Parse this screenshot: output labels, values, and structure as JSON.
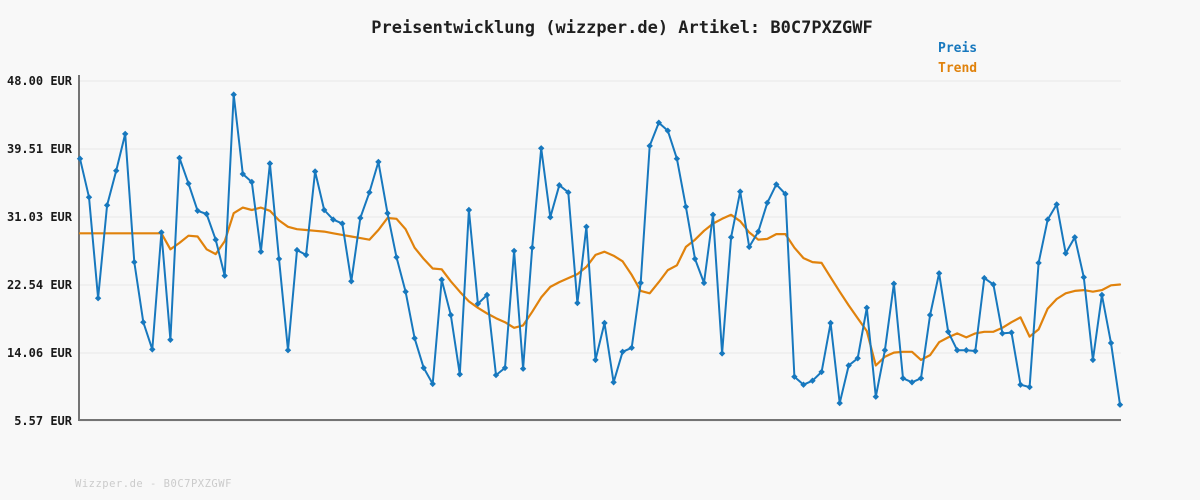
{
  "title": "Preisentwicklung (wizzper.de) Artikel: B0C7PXZGWF",
  "footer": "Wizzper.de - B0C7PXZGWF",
  "legend": {
    "items": [
      {
        "label": "Preis",
        "color": "#1778be"
      },
      {
        "label": "Trend",
        "color": "#e0820c"
      }
    ]
  },
  "colors": {
    "background": "#f8f8f8",
    "gridline": "#e8e8e8",
    "axis_spine": "#747474",
    "tick_text": "#1a1a1a",
    "price_line": "#1778be",
    "trend_line": "#e0820c"
  },
  "y_axis": {
    "unit": "EUR",
    "ticks": [
      {
        "label": "48.00 EUR",
        "value": 48.0
      },
      {
        "label": "39.51 EUR",
        "value": 39.51
      },
      {
        "label": "31.03 EUR",
        "value": 31.03
      },
      {
        "label": "22.54 EUR",
        "value": 22.54
      },
      {
        "label": "14.06 EUR",
        "value": 14.06
      },
      {
        "label": "5.57 EUR",
        "value": 5.57
      }
    ]
  },
  "chart_data": {
    "type": "line",
    "title": "Preisentwicklung (wizzper.de) Artikel: B0C7PXZGWF",
    "xlabel": "",
    "ylabel": "EUR",
    "ylim": [
      5.57,
      48.0
    ],
    "x_axis_labels": "none (index 0..115, evenly spaced)",
    "grid": "horizontal",
    "legend_position": "top-right",
    "series": [
      {
        "name": "Preis",
        "color": "#1778be",
        "marker": "diamond",
        "values": [
          38.3,
          33.5,
          20.9,
          32.5,
          36.8,
          41.4,
          25.4,
          17.9,
          14.5,
          29.1,
          15.7,
          38.4,
          35.2,
          31.8,
          31.4,
          28.2,
          23.7,
          46.3,
          36.4,
          35.4,
          26.7,
          37.7,
          25.8,
          14.4,
          26.9,
          26.3,
          36.7,
          31.9,
          30.7,
          30.2,
          23.0,
          30.9,
          34.1,
          37.9,
          31.5,
          26.0,
          21.7,
          15.9,
          12.2,
          10.2,
          23.2,
          18.8,
          11.4,
          31.9,
          20.2,
          21.3,
          11.3,
          12.2,
          26.8,
          12.1,
          27.2,
          39.6,
          31.0,
          35.0,
          34.1,
          20.3,
          29.8,
          13.2,
          17.8,
          10.4,
          14.2,
          14.7,
          22.8,
          39.9,
          42.8,
          41.8,
          38.3,
          32.3,
          25.8,
          22.8,
          31.3,
          14.0,
          28.5,
          34.2,
          27.3,
          29.2,
          32.8,
          35.1,
          33.9,
          11.1,
          10.1,
          10.6,
          11.7,
          17.8,
          7.8,
          12.5,
          13.4,
          19.7,
          8.6,
          14.4,
          22.7,
          10.9,
          10.4,
          10.9,
          18.8,
          24.0,
          16.7,
          14.4,
          14.4,
          14.3,
          23.4,
          22.6,
          16.5,
          16.6,
          10.1,
          9.8,
          25.3,
          30.7,
          32.6,
          26.5,
          28.5,
          23.5,
          13.2,
          21.3,
          15.3,
          7.6
        ]
      },
      {
        "name": "Trend",
        "color": "#e0820c",
        "marker": "none",
        "values": [
          29.0,
          29.0,
          29.0,
          29.0,
          29.0,
          29.0,
          29.0,
          29.0,
          29.0,
          29.0,
          27.0,
          27.8,
          28.7,
          28.6,
          27.0,
          26.4,
          28.0,
          31.5,
          32.2,
          31.9,
          32.2,
          31.8,
          30.6,
          29.8,
          29.5,
          29.4,
          29.3,
          29.2,
          29.0,
          28.8,
          28.6,
          28.4,
          28.2,
          29.4,
          30.9,
          30.8,
          29.5,
          27.2,
          25.8,
          24.6,
          24.5,
          23.0,
          21.7,
          20.5,
          19.7,
          19.0,
          18.4,
          17.9,
          17.2,
          17.5,
          19.2,
          21.0,
          22.3,
          22.9,
          23.4,
          23.9,
          24.8,
          26.3,
          26.7,
          26.2,
          25.5,
          23.8,
          21.8,
          21.5,
          22.9,
          24.4,
          25.0,
          27.3,
          28.2,
          29.3,
          30.2,
          30.8,
          31.3,
          30.5,
          29.1,
          28.2,
          28.3,
          28.9,
          28.9,
          27.2,
          25.9,
          25.4,
          25.3,
          23.5,
          21.7,
          20.0,
          18.4,
          16.8,
          12.5,
          13.6,
          14.1,
          14.2,
          14.2,
          13.2,
          13.8,
          15.4,
          16.0,
          16.5,
          16.0,
          16.5,
          16.7,
          16.7,
          17.2,
          17.9,
          18.5,
          16.1,
          17.0,
          19.6,
          20.8,
          21.5,
          21.8,
          21.9,
          21.7,
          21.9,
          22.5,
          22.6
        ]
      }
    ]
  }
}
